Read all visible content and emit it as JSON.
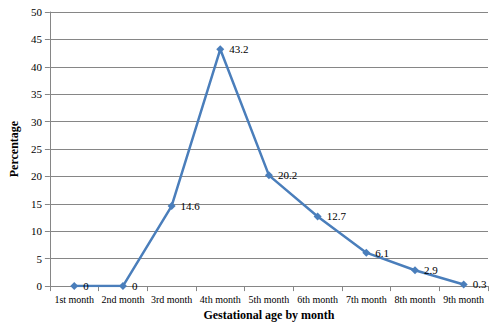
{
  "chart_data": {
    "type": "line",
    "x_label": "Gestational age by month",
    "y_label": "Percentage",
    "categories": [
      "1st month",
      "2nd month",
      "3rd month",
      "4th month",
      "5th month",
      "6th month",
      "7th month",
      "8th month",
      "9th month"
    ],
    "values": [
      0,
      0,
      14.6,
      43.2,
      20.2,
      12.7,
      6.1,
      2.9,
      0.3
    ],
    "color": "#4a7ebb",
    "marker": "diamond",
    "line_style": "solid",
    "ylim": [
      0,
      50
    ],
    "yticks": [
      0,
      5,
      10,
      15,
      20,
      25,
      30,
      35,
      40,
      45,
      50
    ],
    "grid": true,
    "data_labels": true
  }
}
